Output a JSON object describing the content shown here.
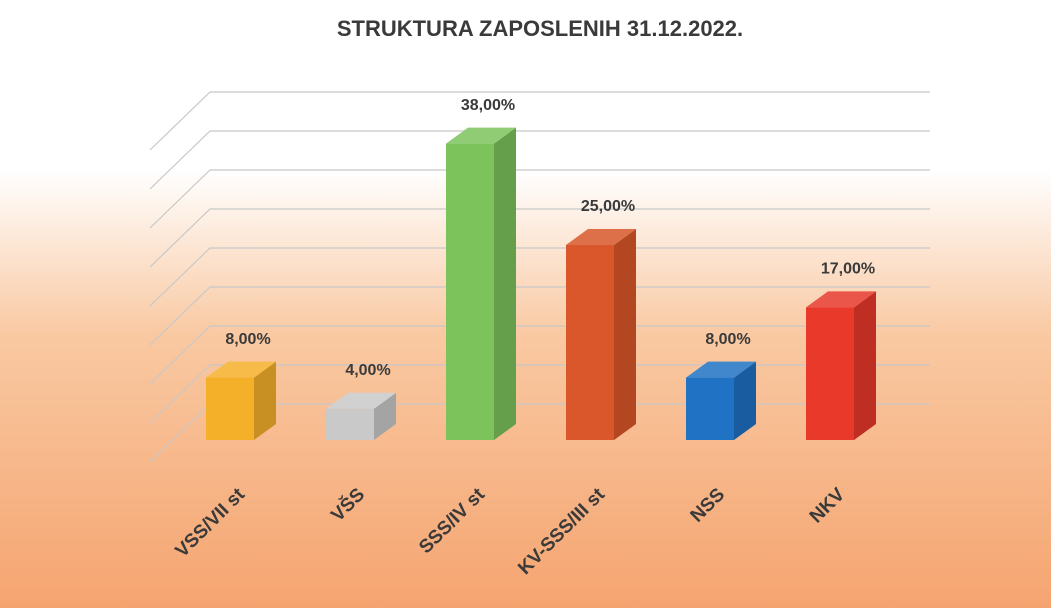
{
  "chart_data": {
    "type": "bar3d",
    "title": "STRUKTURA ZAPOSLENIH 31.12.2022.",
    "categories": [
      "VSS/VII st",
      "VŠS",
      "SSS/IV st",
      "KV-SSS/III st",
      "NSS",
      "NKV"
    ],
    "values": [
      8,
      4,
      38,
      25,
      8,
      17
    ],
    "value_labels": [
      "8,00%",
      "4,00%",
      "38,00%",
      "25,00%",
      "8,00%",
      "17,00%"
    ],
    "colors": [
      "#f5b02a",
      "#c9c9c9",
      "#7cc35c",
      "#d9572a",
      "#1f72c4",
      "#e8392b"
    ],
    "ylim": [
      0,
      40
    ],
    "yticks": [
      0,
      5,
      10,
      15,
      20,
      25,
      30,
      35,
      40
    ],
    "grid": true
  }
}
